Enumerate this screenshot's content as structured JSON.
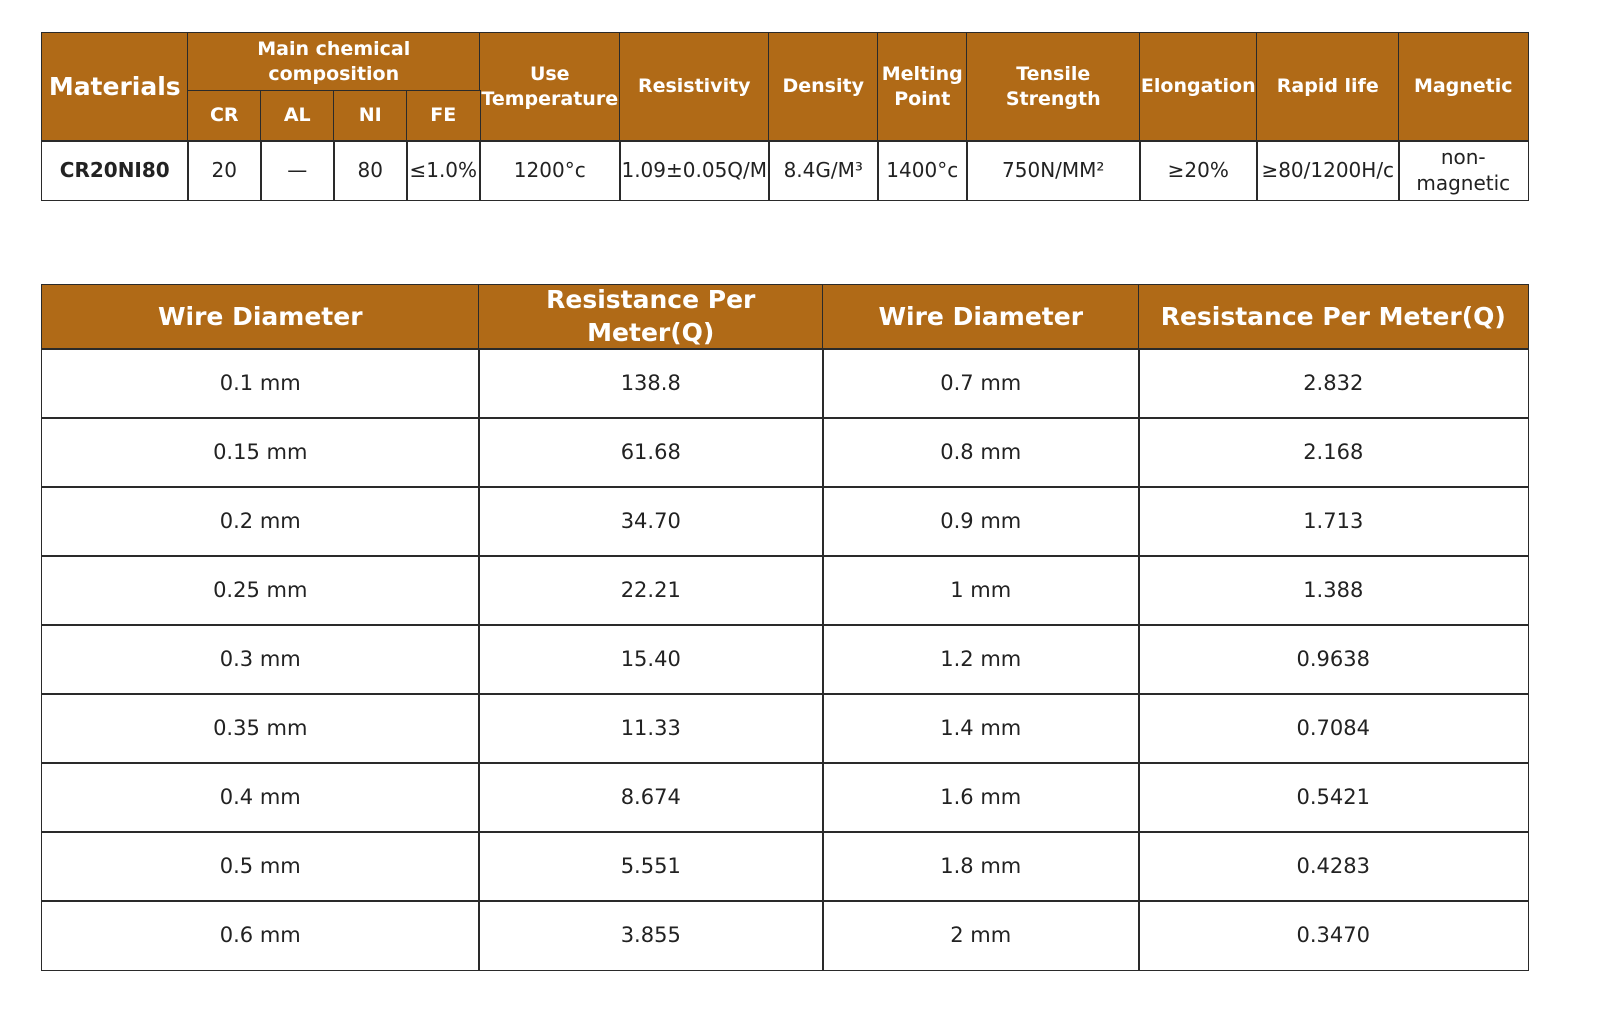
{
  "table1": {
    "header_top": [
      "Materials",
      "Main chemical composition",
      "Use Temperature",
      "Resistivity",
      "Density",
      "Melting Point",
      "Tensile Strength",
      "Elongation",
      "Rapid life",
      "Magnetic"
    ],
    "header_sub": [
      "CR",
      "AL",
      "NI",
      "FE"
    ],
    "rows": [
      [
        "CR20NI80",
        "20",
        "—",
        "80",
        "≤1.0%",
        "1200°c",
        "1.09±0.05Q/M",
        "8.4G/M³",
        "1400°c",
        "750N/MM²",
        "≥20%",
        "≥80/1200H/c",
        "non-magnetic"
      ]
    ]
  },
  "table2": {
    "headers": [
      "Wire Diameter",
      "Resistance Per Meter(Q)",
      "Wire Diameter",
      "Resistance Per Meter(Q)"
    ],
    "rows": [
      [
        "0.1 mm",
        "138.8",
        "0.7 mm",
        "2.832"
      ],
      [
        "0.15 mm",
        "61.68",
        "0.8 mm",
        "2.168"
      ],
      [
        "0.2 mm",
        "34.70",
        "0.9 mm",
        "1.713"
      ],
      [
        "0.25 mm",
        "22.21",
        "1 mm",
        "1.388"
      ],
      [
        "0.3 mm",
        "15.40",
        "1.2 mm",
        "0.9638"
      ],
      [
        "0.35 mm",
        "11.33",
        "1.4 mm",
        "0.7084"
      ],
      [
        "0.4 mm",
        "8.674",
        "1.6 mm",
        "0.5421"
      ],
      [
        "0.5 mm",
        "5.551",
        "1.8 mm",
        "0.4283"
      ],
      [
        "0.6 mm",
        "3.855",
        "2 mm",
        "0.3470"
      ]
    ]
  }
}
